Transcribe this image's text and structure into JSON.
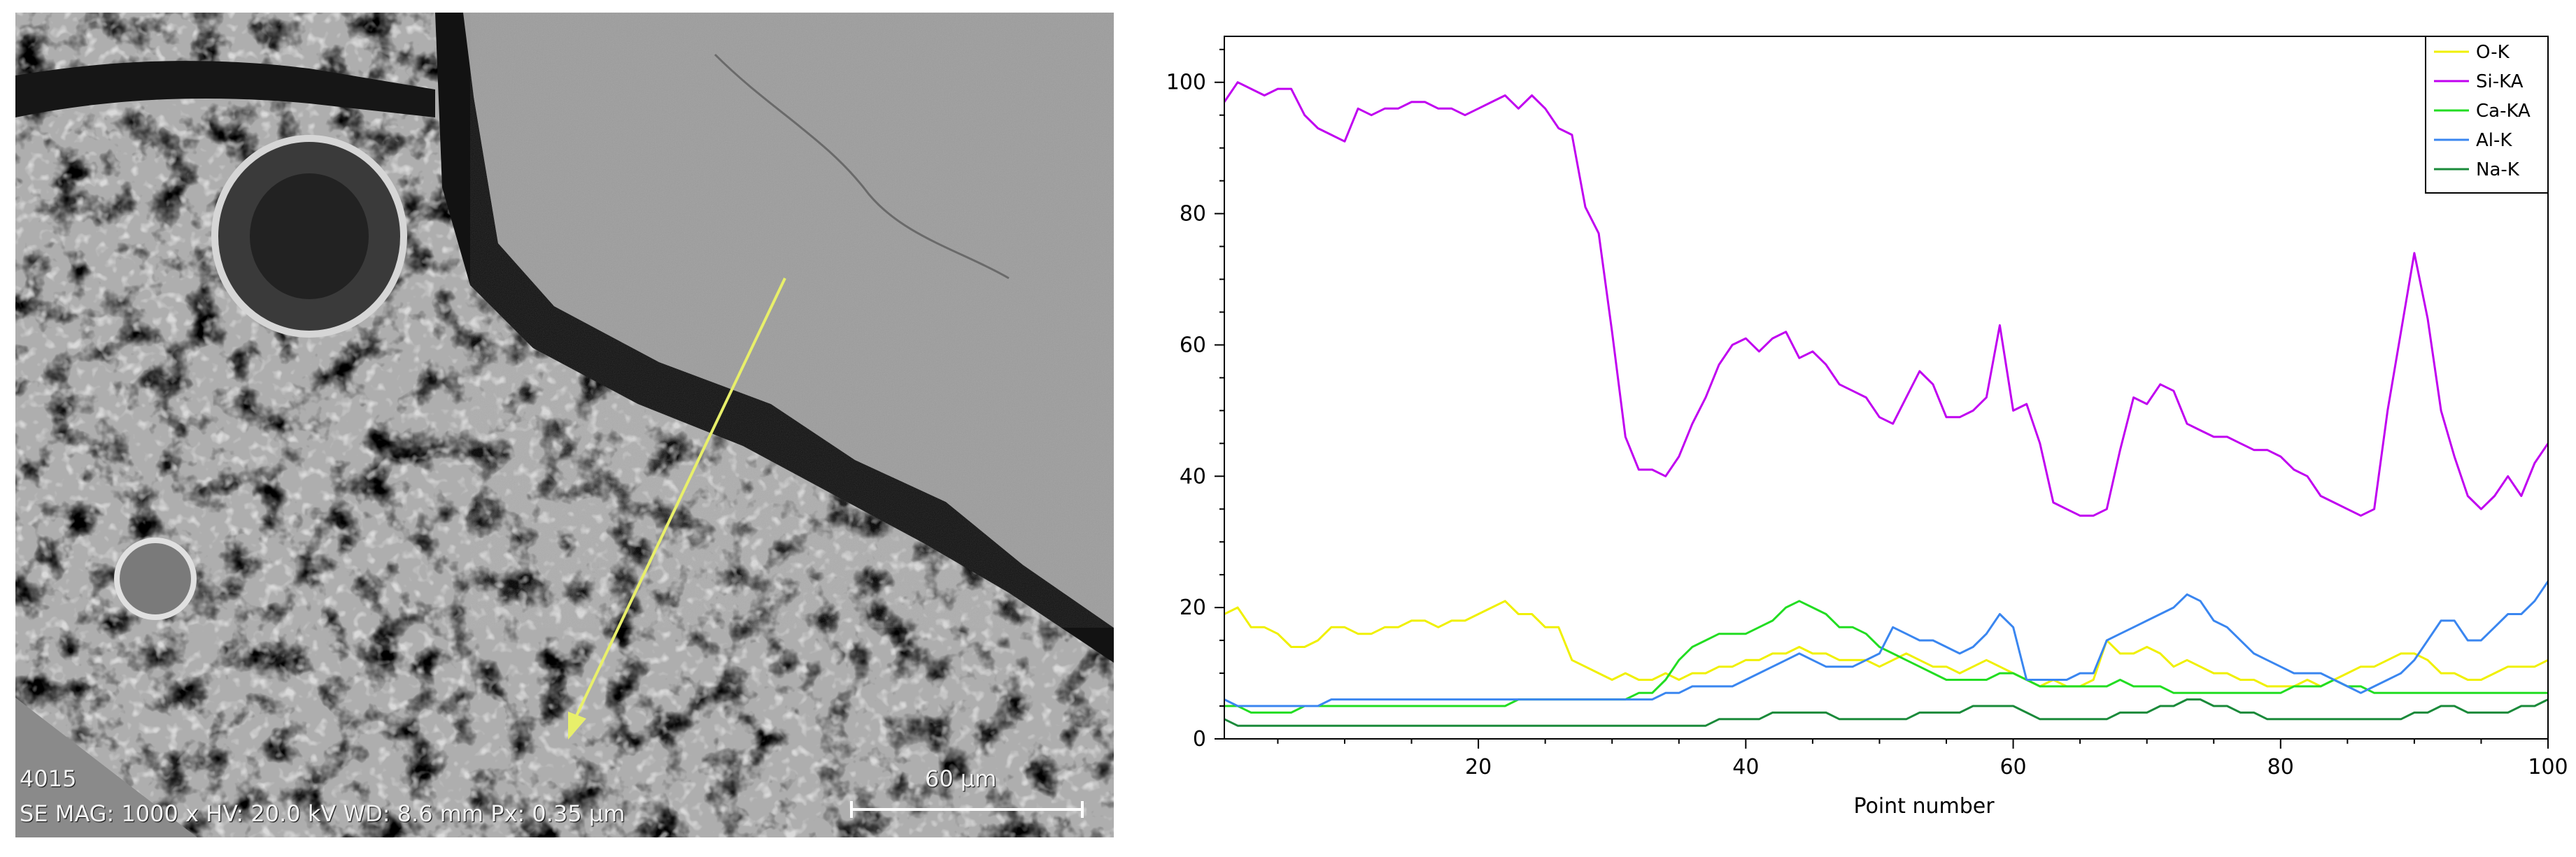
{
  "sem_image": {
    "sample_id": "4015",
    "info_line": "SE  MAG: 1000 x   HV: 20.0 kV   WD: 8.6 mm   Px: 0.35 µm",
    "scale_bar_label": "60 µm",
    "line_scan_color": "#e8ef6a"
  },
  "chart_data": {
    "type": "line",
    "title": "",
    "xlabel": "Point number",
    "ylabel": "",
    "xlim": [
      1,
      100
    ],
    "ylim": [
      0,
      107
    ],
    "x_ticks": [
      20,
      40,
      60,
      80,
      100
    ],
    "y_ticks": [
      0,
      20,
      40,
      60,
      80,
      100
    ],
    "grid": false,
    "legend_position": "top-right",
    "x": [
      1,
      2,
      3,
      4,
      5,
      6,
      7,
      8,
      9,
      10,
      11,
      12,
      13,
      14,
      15,
      16,
      17,
      18,
      19,
      20,
      21,
      22,
      23,
      24,
      25,
      26,
      27,
      28,
      29,
      30,
      31,
      32,
      33,
      34,
      35,
      36,
      37,
      38,
      39,
      40,
      41,
      42,
      43,
      44,
      45,
      46,
      47,
      48,
      49,
      50,
      51,
      52,
      53,
      54,
      55,
      56,
      57,
      58,
      59,
      60,
      61,
      62,
      63,
      64,
      65,
      66,
      67,
      68,
      69,
      70,
      71,
      72,
      73,
      74,
      75,
      76,
      77,
      78,
      79,
      80,
      81,
      82,
      83,
      84,
      85,
      86,
      87,
      88,
      89,
      90,
      91,
      92,
      93,
      94,
      95,
      96,
      97,
      98,
      99,
      100
    ],
    "series": [
      {
        "name": "O-K",
        "color": "#f0f000",
        "values": [
          19,
          20,
          17,
          17,
          16,
          14,
          14,
          15,
          17,
          17,
          16,
          16,
          17,
          17,
          18,
          18,
          17,
          18,
          18,
          19,
          20,
          21,
          19,
          19,
          17,
          17,
          12,
          11,
          10,
          9,
          10,
          9,
          9,
          10,
          9,
          10,
          10,
          11,
          11,
          12,
          12,
          13,
          13,
          14,
          13,
          13,
          12,
          12,
          12,
          11,
          12,
          13,
          12,
          11,
          11,
          10,
          11,
          12,
          11,
          10,
          9,
          8,
          9,
          8,
          8,
          9,
          15,
          13,
          13,
          14,
          13,
          11,
          12,
          11,
          10,
          10,
          9,
          9,
          8,
          8,
          8,
          9,
          8,
          9,
          10,
          11,
          11,
          12,
          13,
          13,
          12,
          10,
          10,
          9,
          9,
          10,
          11,
          11,
          11,
          12
        ]
      },
      {
        "name": "Si-KA",
        "color": "#c000f0",
        "values": [
          97,
          100,
          99,
          98,
          99,
          99,
          95,
          93,
          92,
          91,
          96,
          95,
          96,
          96,
          97,
          97,
          96,
          96,
          95,
          96,
          97,
          98,
          96,
          98,
          96,
          93,
          92,
          81,
          77,
          62,
          46,
          41,
          41,
          40,
          43,
          48,
          52,
          57,
          60,
          61,
          59,
          61,
          62,
          58,
          59,
          57,
          54,
          53,
          52,
          49,
          48,
          52,
          56,
          54,
          49,
          49,
          50,
          52,
          63,
          50,
          51,
          45,
          36,
          35,
          34,
          34,
          35,
          44,
          52,
          51,
          54,
          53,
          48,
          47,
          46,
          46,
          45,
          44,
          44,
          43,
          41,
          40,
          37,
          36,
          35,
          34,
          35,
          50,
          62,
          74,
          64,
          50,
          43,
          37,
          35,
          37,
          40,
          37,
          42,
          45
        ]
      },
      {
        "name": "Ca-KA",
        "color": "#22dd22",
        "values": [
          5,
          5,
          4,
          4,
          4,
          4,
          5,
          5,
          5,
          5,
          5,
          5,
          5,
          5,
          5,
          5,
          5,
          5,
          5,
          5,
          5,
          5,
          6,
          6,
          6,
          6,
          6,
          6,
          6,
          6,
          6,
          7,
          7,
          9,
          12,
          14,
          15,
          16,
          16,
          16,
          17,
          18,
          20,
          21,
          20,
          19,
          17,
          17,
          16,
          14,
          13,
          12,
          11,
          10,
          9,
          9,
          9,
          9,
          10,
          10,
          9,
          8,
          8,
          8,
          8,
          8,
          8,
          9,
          8,
          8,
          8,
          7,
          7,
          7,
          7,
          7,
          7,
          7,
          7,
          7,
          8,
          8,
          8,
          9,
          8,
          8,
          7,
          7,
          7,
          7,
          7,
          7,
          7,
          7,
          7,
          7,
          7,
          7,
          7,
          7
        ]
      },
      {
        "name": "Al-K",
        "color": "#3a86f0",
        "values": [
          6,
          5,
          5,
          5,
          5,
          5,
          5,
          5,
          6,
          6,
          6,
          6,
          6,
          6,
          6,
          6,
          6,
          6,
          6,
          6,
          6,
          6,
          6,
          6,
          6,
          6,
          6,
          6,
          6,
          6,
          6,
          6,
          6,
          7,
          7,
          8,
          8,
          8,
          8,
          9,
          10,
          11,
          12,
          13,
          12,
          11,
          11,
          11,
          12,
          13,
          17,
          16,
          15,
          15,
          14,
          13,
          14,
          16,
          19,
          17,
          9,
          9,
          9,
          9,
          10,
          10,
          15,
          16,
          17,
          18,
          19,
          20,
          22,
          21,
          18,
          17,
          15,
          13,
          12,
          11,
          10,
          10,
          10,
          9,
          8,
          7,
          8,
          9,
          10,
          12,
          15,
          18,
          18,
          15,
          15,
          17,
          19,
          19,
          21,
          24
        ]
      },
      {
        "name": "Na-K",
        "color": "#1a8a3a",
        "values": [
          3,
          2,
          2,
          2,
          2,
          2,
          2,
          2,
          2,
          2,
          2,
          2,
          2,
          2,
          2,
          2,
          2,
          2,
          2,
          2,
          2,
          2,
          2,
          2,
          2,
          2,
          2,
          2,
          2,
          2,
          2,
          2,
          2,
          2,
          2,
          2,
          2,
          3,
          3,
          3,
          3,
          4,
          4,
          4,
          4,
          4,
          3,
          3,
          3,
          3,
          3,
          3,
          4,
          4,
          4,
          4,
          5,
          5,
          5,
          5,
          4,
          3,
          3,
          3,
          3,
          3,
          3,
          4,
          4,
          4,
          5,
          5,
          6,
          6,
          5,
          5,
          4,
          4,
          3,
          3,
          3,
          3,
          3,
          3,
          3,
          3,
          3,
          3,
          3,
          4,
          4,
          5,
          5,
          4,
          4,
          4,
          4,
          5,
          5,
          6
        ]
      }
    ]
  }
}
